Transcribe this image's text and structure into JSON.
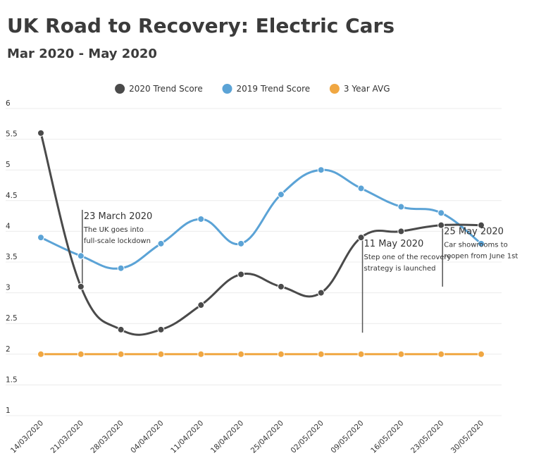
{
  "chart_data": {
    "type": "line",
    "title": "UK Road to Recovery: Electric Cars",
    "subtitle": "Mar 2020 - May 2020",
    "xlabel": "",
    "ylabel": "",
    "x": [
      "14/03/2020",
      "21/03/2020",
      "28/03/2020",
      "04/04/2020",
      "11/04/2020",
      "18/04/2020",
      "25/04/2020",
      "02/05/2020",
      "09/05/2020",
      "16/05/2020",
      "23/05/2020",
      "30/05/2020"
    ],
    "yticks": [
      "1",
      "1.5",
      "2",
      "2.5",
      "3",
      "3.5",
      "4",
      "4.5",
      "5",
      "5.5",
      "6"
    ],
    "ylim": [
      1,
      6
    ],
    "grid": true,
    "legend_position": "top",
    "series": [
      {
        "name": "2020 Trend Score",
        "color": "#4a4a4a",
        "values": [
          5.6,
          3.1,
          2.4,
          2.4,
          2.8,
          3.3,
          3.1,
          3.0,
          3.9,
          4.0,
          4.1,
          4.1
        ]
      },
      {
        "name": "2019 Trend Score",
        "color": "#5ba3d6",
        "values": [
          3.9,
          3.6,
          3.4,
          3.8,
          4.2,
          3.8,
          4.6,
          5.0,
          4.7,
          4.4,
          4.3,
          3.8
        ]
      },
      {
        "name": "3 Year AVG",
        "color": "#f0a742",
        "values": [
          2.0,
          2.0,
          2.0,
          2.0,
          2.0,
          2.0,
          2.0,
          2.0,
          2.0,
          2.0,
          2.0,
          2.0
        ]
      }
    ],
    "annotations": [
      {
        "x_index": 1,
        "y_bottom": 3.1,
        "y_top": 4.35,
        "title": "23 March 2020",
        "lines": [
          "The UK goes into",
          "full-scale lockdown"
        ]
      },
      {
        "x_index": 8,
        "y_bottom": 2.35,
        "y_top": 3.9,
        "title": "11 May 2020",
        "lines": [
          "Step one of the recovery",
          "strategy is launched"
        ]
      },
      {
        "x_index": 10,
        "y_bottom": 3.1,
        "y_top": 4.1,
        "title": "25 May 2020",
        "lines": [
          "Car showrooms to",
          "reopen from June 1st"
        ]
      }
    ]
  }
}
